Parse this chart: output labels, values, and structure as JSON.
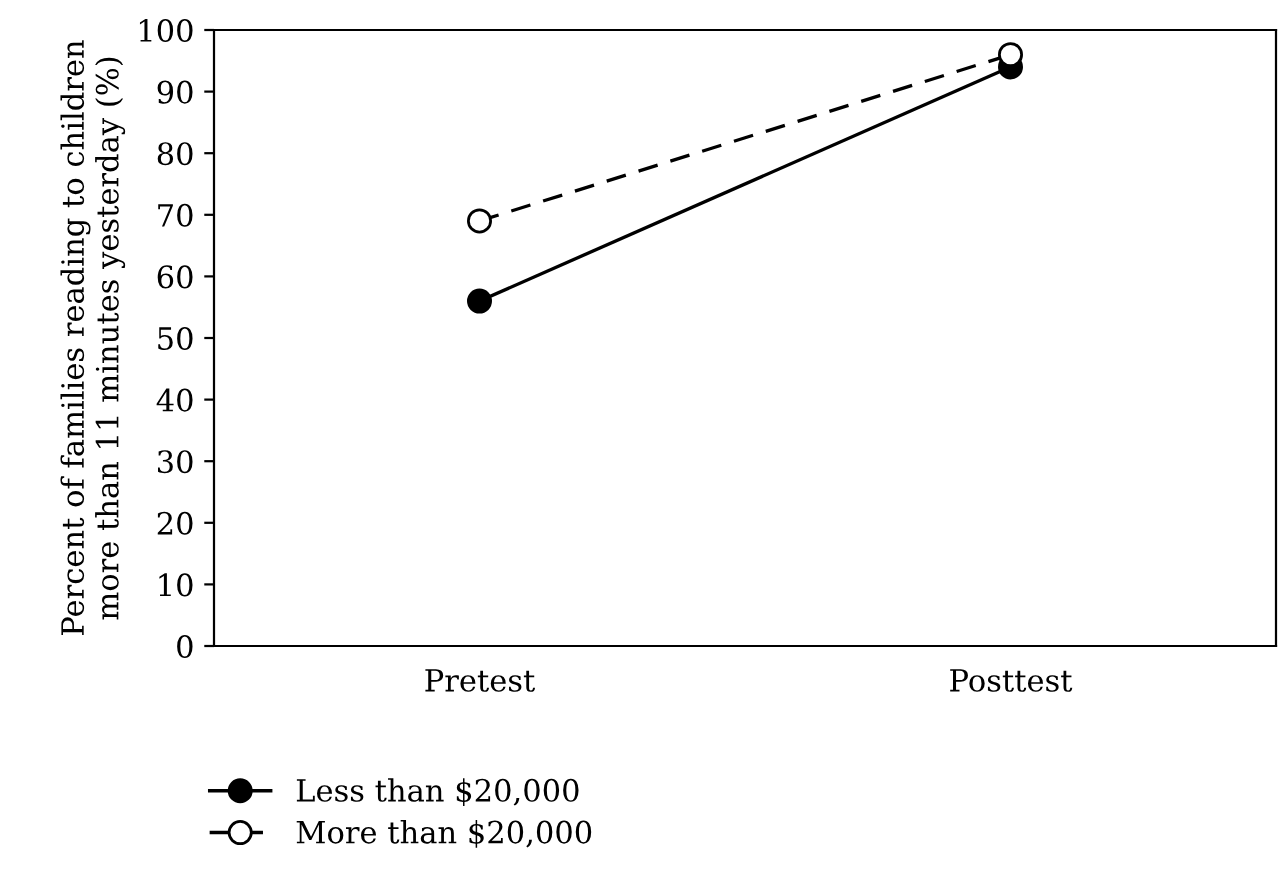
{
  "chart_data": {
    "type": "line",
    "ylabel": "Percent of families reading to children\nmore than 11 minutes yesterday (%)",
    "categories": [
      "Pretest",
      "Posttest"
    ],
    "series": [
      {
        "name": "Less than $20,000",
        "color": "#000000",
        "values": [
          56,
          94
        ],
        "marker": "circle",
        "line_style": "solid"
      },
      {
        "name": "More than $20,000",
        "color": "#000000",
        "values": [
          69,
          96
        ],
        "marker": "circle",
        "line_style": "dashed"
      }
    ],
    "ylim": [
      0,
      100
    ],
    "yticks": [
      0,
      10,
      20,
      30,
      40,
      50,
      60,
      70,
      80,
      90,
      100
    ],
    "grid": false,
    "legend": "bottom left"
  }
}
